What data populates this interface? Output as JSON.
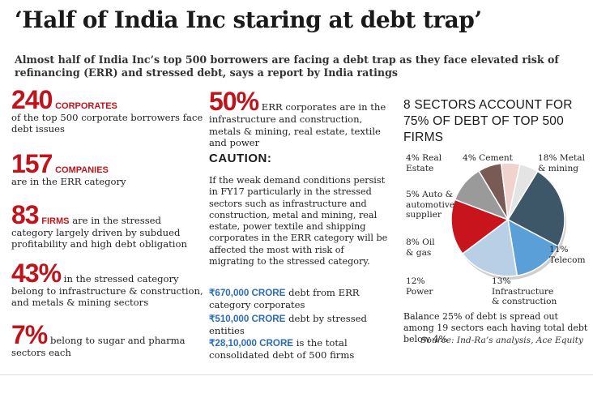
{
  "title": "‘Half of India Inc staring at debt trap’",
  "lede": "Almost half of India Inc’s top 500 borrowers are facing a debt trap as they face elevated risk of refinancing (ERR) and stressed debt, says a report by India ratings",
  "stats": [
    {
      "num": "240",
      "tag": "CORPORATES",
      "text": "of the top 500 corporate borrowers face debt issues"
    },
    {
      "num": "157",
      "tag": "COMPANIES",
      "text": "are in the ERR category"
    },
    {
      "num": "83",
      "tag": "FIRMS",
      "text_inline": "are in the stressed",
      "text": "category largely driven by subdued profitability and high debt obligation"
    },
    {
      "num": "43%",
      "text_inline": "in the stressed category",
      "text": "belong to infrastructure & construction, and metals & mining sectors"
    },
    {
      "num": "7%",
      "text_inline": "belong to sugar and pharma",
      "text": "sectors each"
    }
  ],
  "err_share": {
    "num": "50%",
    "text_inline": "ERR corporates are in the",
    "text": "infrastructure and construction, metals & mining, real estate, textile and power"
  },
  "caution": {
    "heading": "CAUTION:",
    "text": "If the weak demand conditions persist in FY17 particularly in the stressed sectors such as infrastructure and construction, metal and mining, real estate, power textile and shipping corporates in the ERR category will be affected the most with risk of migrating to the stressed category."
  },
  "debts": [
    {
      "amount": "₹670,000 CRORE",
      "text": "debt from ERR",
      "text2": "category corporates"
    },
    {
      "amount": "₹510,000 CRORE",
      "text": "debt by stressed",
      "text2": "entities"
    },
    {
      "amount": "₹28,10,000 CRORE",
      "text": "is the total",
      "text2": "consolidated debt of 500 firms"
    }
  ],
  "colors": {
    "accent_red": "#c0141c",
    "accent_blue": "#2b6db5"
  },
  "chart_data": {
    "type": "pie",
    "title": "8 SECTORS ACCOUNT FOR 75% OF DEBT OF TOP 500 FIRMS",
    "unit": "% of debt",
    "slices": [
      {
        "name": "Metal & mining",
        "label_pct": "18%",
        "value": 18,
        "color": "#3d5668"
      },
      {
        "name": "Telecom",
        "label_pct": "11%",
        "value": 11,
        "color": "#5b9fd8"
      },
      {
        "name": "Infrastructure & construction",
        "label_pct": "13%",
        "value": 13,
        "color": "#b9cfe6"
      },
      {
        "name": "Power",
        "label_pct": "12%",
        "value": 12,
        "color": "#c8151d"
      },
      {
        "name": "Oil & gas",
        "label_pct": "8%",
        "value": 8,
        "color": "#9a9a9a"
      },
      {
        "name": "Auto & automotive supplier",
        "label_pct": "5%",
        "value": 5,
        "color": "#7a5a55"
      },
      {
        "name": "Real Estate",
        "label_pct": "4%",
        "value": 4,
        "color": "#f1d3ce"
      },
      {
        "name": "Cement",
        "label_pct": "4%",
        "value": 4,
        "color": "#e4e4e4"
      }
    ],
    "labels": {
      "metal_mining": [
        "18% Metal",
        "& mining"
      ],
      "telecom": [
        "11%",
        "Telecom"
      ],
      "infra": [
        "13%",
        "Infrastructure",
        "& construction"
      ],
      "power": [
        "12%",
        "Power"
      ],
      "oil_gas": [
        "8% Oil",
        "& gas"
      ],
      "auto": [
        "5% Auto &",
        "automotive",
        "supplier"
      ],
      "real_estate": [
        "4% Real",
        "Estate"
      ],
      "cement": [
        "4% Cement"
      ]
    },
    "footnote": "Balance 25% of debt is spread out among 19 sectors each having total debt below 4%",
    "source": "Source: Ind-Ra’s analysis, Ace Equity"
  }
}
